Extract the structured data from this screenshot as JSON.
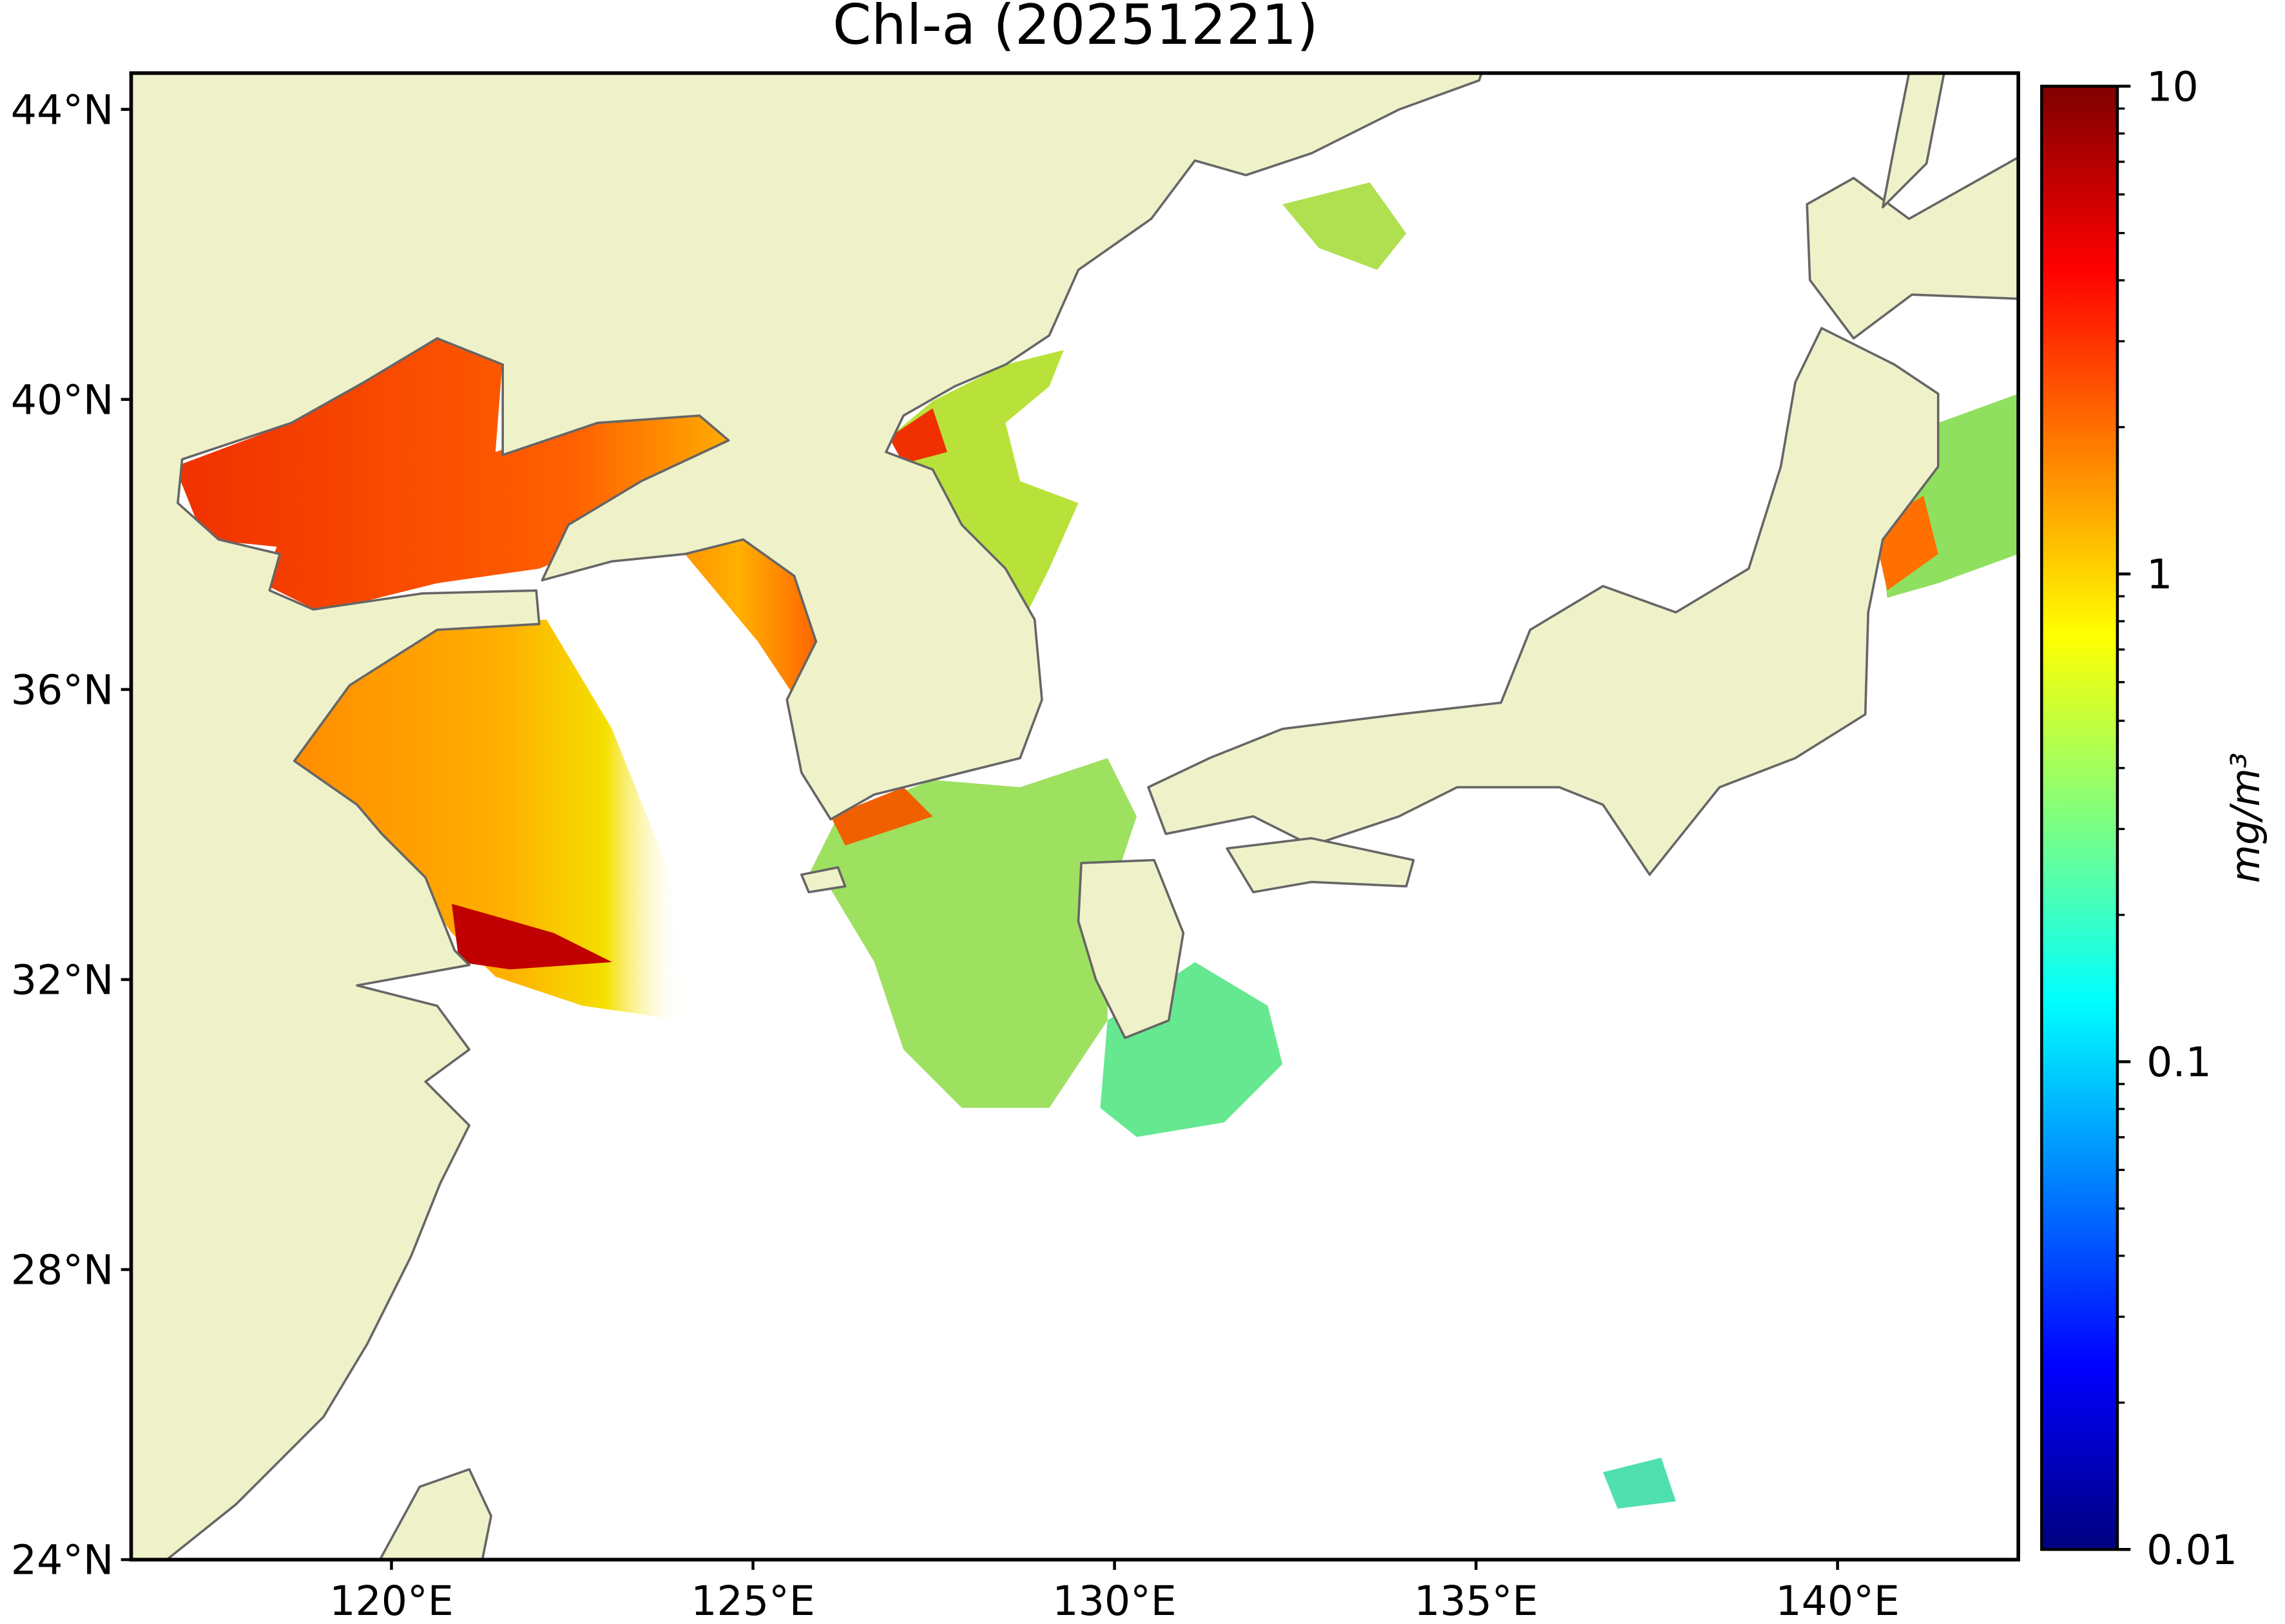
{
  "title": "Chl-a (20251221)",
  "map": {
    "xlim": [
      116.4,
      142.5
    ],
    "ylim": [
      24,
      44.5
    ],
    "xticks": [
      {
        "value": 120,
        "label": "120°E"
      },
      {
        "value": 125,
        "label": "125°E"
      },
      {
        "value": 130,
        "label": "130°E"
      },
      {
        "value": 135,
        "label": "135°E"
      },
      {
        "value": 140,
        "label": "140°E"
      }
    ],
    "yticks": [
      {
        "value": 24,
        "label": "24°N"
      },
      {
        "value": 28,
        "label": "28°N"
      },
      {
        "value": 32,
        "label": "32°N"
      },
      {
        "value": 36,
        "label": "36°N"
      },
      {
        "value": 40,
        "label": "40°N"
      },
      {
        "value": 44,
        "label": "44°N"
      }
    ]
  },
  "colorbar": {
    "lim": [
      0.01,
      10
    ],
    "log": true,
    "label": "mg/m³",
    "ticks": [
      {
        "value": 0.01,
        "label": "0.01"
      },
      {
        "value": 0.1,
        "label": "0.1"
      },
      1,
      10
    ]
  }
}
